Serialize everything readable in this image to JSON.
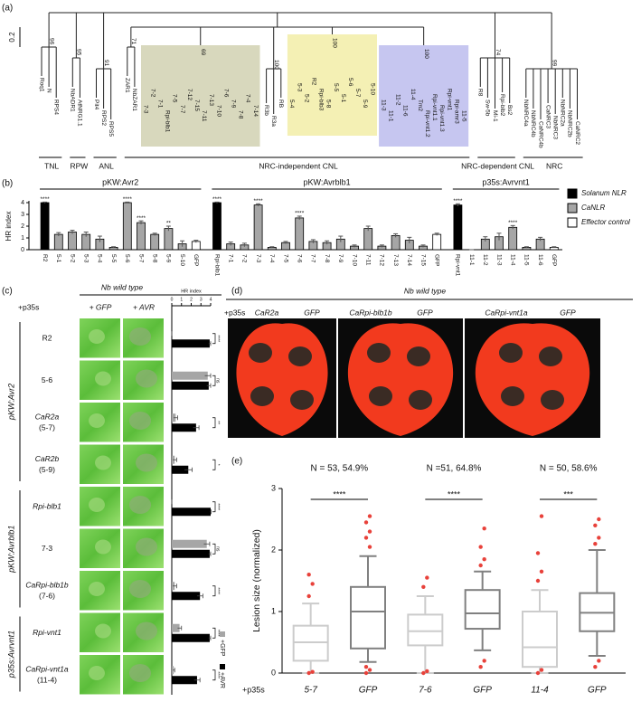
{
  "panel_labels": [
    "(a)",
    "(b)",
    "(c)",
    "(d)",
    "(e)"
  ],
  "tree": {
    "scale_label": "0.2",
    "clades": [
      {
        "label": "TNL",
        "groups": [
          {
            "support": 96,
            "leaves": [
              "Roq1",
              "N",
              "RPS4"
            ]
          }
        ]
      },
      {
        "label": "RPW",
        "groups": [
          {
            "support": 95,
            "leaves": [
              "NbADR1",
              "AtNRG1.1"
            ]
          }
        ]
      },
      {
        "label": "ANL",
        "groups": [
          {
            "support": 91,
            "leaves": [
              "Pit4",
              "RPS2",
              "RPS5"
            ]
          }
        ]
      },
      {
        "label": "NRC-independent CNL",
        "groups": [
          {
            "support": 71,
            "leaves": [
              "ZAR1",
              "NbZAR1"
            ]
          },
          {
            "support": 69,
            "shade": "#d8d8bd",
            "leaves": [
              "7-3",
              "7-2",
              "7-1",
              "Rpi-blb1",
              "7-5",
              "7-7",
              "7-12",
              "7-15",
              "7-11",
              "7-13",
              "7-10",
              "7-6",
              "7-9",
              "7-8",
              "7-4",
              "7-14"
            ]
          },
          {
            "support": 100,
            "leaves": [
              "R3b",
              "R3a",
              "RB"
            ]
          },
          {
            "support": 100,
            "shade": "#f4f0b4",
            "leaves": [
              "5-4",
              "5-3",
              "5-2",
              "R2",
              "Rpi-blb3",
              "5-8",
              "5-5",
              "5-1",
              "5-6",
              "5-7",
              "5-9",
              "5-10"
            ]
          },
          {
            "support": 100,
            "shade": "#c6c6f0",
            "leaves": [
              "11-3",
              "11-1",
              "11-2",
              "11-6",
              "11-4",
              "Tm2",
              "Rpi-vnt1.2",
              "Rpi-vnt1.1",
              "Rpi-vnt1.3",
              "Rpi-vnt1",
              "Rpi-amr3",
              "11-5"
            ]
          }
        ]
      },
      {
        "label": "NRC-dependent CNL",
        "groups": [
          {
            "support": 74,
            "leaves": [
              "R8",
              "Sw-5b",
              "Mi-1",
              "Rpi-blb2",
              "Bs2"
            ]
          }
        ]
      },
      {
        "label": "NRC",
        "groups": [
          {
            "support": 99,
            "leaves": [
              "NbNRC4a",
              "NbNRC4b",
              "CaNRC4b",
              "CaNRC3",
              "NbNRC3",
              "NbNRC2a",
              "NbNRC2b",
              "CaNRC2"
            ]
          }
        ]
      }
    ]
  },
  "chart_data": [
    {
      "type": "bar",
      "y_label": "HR index",
      "ylim": [
        0,
        4
      ],
      "yticks": [
        0,
        1,
        2,
        3,
        4
      ],
      "legend": [
        {
          "name": "Solanum NLR",
          "color": "#000000"
        },
        {
          "name": "CaNLR",
          "color": "#a6a6a6"
        },
        {
          "name": "Effector control",
          "color": "#ffffff"
        }
      ],
      "groups": [
        {
          "label": "pKW:Avr2",
          "categories": [
            "R2",
            "5-1",
            "5-2",
            "5-3",
            "5-4",
            "5-5",
            "5-6",
            "5-7",
            "5-8",
            "5-9",
            "5-10",
            "GFP"
          ],
          "values": [
            4.0,
            1.3,
            1.5,
            1.3,
            0.9,
            0.2,
            4.0,
            2.3,
            1.3,
            1.8,
            0.5,
            0.7
          ],
          "errors": [
            0.05,
            0.15,
            0.15,
            0.2,
            0.25,
            0.05,
            0.05,
            0.15,
            0.1,
            0.2,
            0.25,
            0.1
          ],
          "colors": [
            "#000000",
            "#a6a6a6",
            "#a6a6a6",
            "#a6a6a6",
            "#a6a6a6",
            "#a6a6a6",
            "#a6a6a6",
            "#a6a6a6",
            "#a6a6a6",
            "#a6a6a6",
            "#a6a6a6",
            "#ffffff"
          ],
          "significance": [
            "****",
            null,
            null,
            null,
            null,
            null,
            "****",
            "****",
            null,
            "**",
            null,
            null
          ]
        },
        {
          "label": "pKW:Avrblb1",
          "categories": [
            "Rpi-blb1",
            "7-1",
            "7-2",
            "7-3",
            "7-4",
            "7-5",
            "7-6",
            "7-7",
            "7-8",
            "7-9",
            "7-10",
            "7-11",
            "7-12",
            "7-13",
            "7-14",
            "7-15",
            "GFP"
          ],
          "values": [
            4.0,
            0.5,
            0.4,
            3.8,
            0.2,
            0.6,
            2.7,
            0.7,
            0.6,
            0.9,
            0.3,
            1.8,
            0.3,
            1.2,
            0.8,
            0.3,
            1.3
          ],
          "errors": [
            0.05,
            0.15,
            0.15,
            0.1,
            0.05,
            0.1,
            0.15,
            0.15,
            0.15,
            0.25,
            0.1,
            0.2,
            0.1,
            0.15,
            0.25,
            0.1,
            0.1
          ],
          "colors": [
            "#000000",
            "#a6a6a6",
            "#a6a6a6",
            "#a6a6a6",
            "#a6a6a6",
            "#a6a6a6",
            "#a6a6a6",
            "#a6a6a6",
            "#a6a6a6",
            "#a6a6a6",
            "#a6a6a6",
            "#a6a6a6",
            "#a6a6a6",
            "#a6a6a6",
            "#a6a6a6",
            "#a6a6a6",
            "#ffffff"
          ],
          "significance": [
            "****",
            null,
            null,
            "****",
            null,
            null,
            "****",
            null,
            null,
            null,
            null,
            null,
            null,
            null,
            null,
            null,
            null
          ]
        },
        {
          "label": "p35s:Avrvnt1",
          "categories": [
            "Rpi-vnt1",
            "11-1",
            "11-2",
            "11-3",
            "11-4",
            "11-5",
            "11-6",
            "GFP"
          ],
          "values": [
            3.8,
            0.0,
            0.9,
            1.1,
            1.9,
            0.2,
            0.9,
            0.2
          ],
          "errors": [
            0.1,
            0.0,
            0.2,
            0.3,
            0.15,
            0.05,
            0.15,
            0.05
          ],
          "colors": [
            "#000000",
            "#a6a6a6",
            "#a6a6a6",
            "#a6a6a6",
            "#a6a6a6",
            "#a6a6a6",
            "#a6a6a6",
            "#ffffff"
          ],
          "significance": [
            "****",
            null,
            null,
            null,
            "****",
            null,
            null,
            null
          ]
        }
      ]
    },
    {
      "type": "barh",
      "x_label": "HR index",
      "xlim": [
        0,
        4
      ],
      "xticks": [
        0,
        1,
        2,
        3,
        4
      ],
      "header": "Nb wild type",
      "prefix": "+p35s",
      "columns": [
        "+ GFP",
        "+ AVR"
      ],
      "series": [
        {
          "name": "+GFP",
          "color": "#a6a6a6"
        },
        {
          "name": "+AVR",
          "color": "#000000"
        }
      ],
      "effectors": [
        {
          "label": "pKW:Avr2",
          "rows": [
            {
              "label": "R2",
              "values": [
                0.0,
                3.9
              ],
              "errors": [
                0.0,
                0.1
              ],
              "significance": "****"
            },
            {
              "label": "5-6",
              "values": [
                3.7,
                3.8
              ],
              "errors": [
                0.3,
                0.2
              ],
              "significance": "ns"
            },
            {
              "label": "CaR2a",
              "sublabel": "(5-7)",
              "values": [
                0.4,
                2.5
              ],
              "errors": [
                0.2,
                0.3
              ],
              "significance": "**"
            },
            {
              "label": "CaR2b",
              "sublabel": "(5-9)",
              "values": [
                0.3,
                1.7
              ],
              "errors": [
                0.2,
                0.4
              ],
              "significance": "*"
            }
          ]
        },
        {
          "label": "pKW:Avrblb1",
          "rows": [
            {
              "label": "Rpi-blb1",
              "values": [
                0.0,
                4.0
              ],
              "errors": [
                0.0,
                0.05
              ],
              "significance": "****"
            },
            {
              "label": "7-3",
              "values": [
                3.6,
                3.9
              ],
              "errors": [
                0.3,
                0.1
              ],
              "significance": "ns"
            },
            {
              "label": "CaRpi-blb1b",
              "sublabel": "(7-6)",
              "values": [
                0.3,
                2.9
              ],
              "errors": [
                0.2,
                0.3
              ],
              "significance": "****"
            }
          ]
        },
        {
          "label": "p35s:Avrvnt1",
          "rows": [
            {
              "label": "Rpi-vnt1",
              "values": [
                0.8,
                3.9
              ],
              "errors": [
                0.2,
                0.1
              ],
              "significance": "****"
            },
            {
              "label": "CaRpi-vnt1a",
              "sublabel": "(11-4)",
              "values": [
                0.2,
                2.6
              ],
              "errors": [
                0.1,
                0.3
              ],
              "significance": "****"
            }
          ]
        }
      ]
    },
    {
      "type": "box",
      "y_label": "Lesion size (normalized)",
      "prefix": "+p35s",
      "ylim": [
        0,
        3
      ],
      "yticks": [
        0,
        1,
        2,
        3
      ],
      "categories": [
        "5-7",
        "GFP",
        "7-6",
        "GFP",
        "11-4",
        "GFP"
      ],
      "colors": [
        "#cccccc",
        "#808080",
        "#cccccc",
        "#808080",
        "#cccccc",
        "#808080"
      ],
      "flier_color": "#e8413a",
      "boxes": [
        {
          "whislo": 0.0,
          "q1": 0.2,
          "med": 0.5,
          "q3": 0.77,
          "whishi": 1.13,
          "fliers": [
            0.0,
            0.02,
            1.25,
            1.45,
            1.6
          ]
        },
        {
          "whislo": 0.18,
          "q1": 0.4,
          "med": 1.0,
          "q3": 1.4,
          "whishi": 1.9,
          "fliers": [
            0.0,
            0.05,
            0.1,
            2.05,
            2.2,
            2.3,
            2.45,
            2.55
          ]
        },
        {
          "whislo": 0.0,
          "q1": 0.45,
          "med": 0.68,
          "q3": 0.95,
          "whishi": 1.25,
          "fliers": [
            0.0,
            0.03,
            1.4,
            1.55
          ]
        },
        {
          "whislo": 0.37,
          "q1": 0.72,
          "med": 0.97,
          "q3": 1.35,
          "whishi": 1.65,
          "fliers": [
            0.1,
            0.2,
            1.75,
            1.85,
            2.05,
            2.35
          ]
        },
        {
          "whislo": 0.0,
          "q1": 0.1,
          "med": 0.42,
          "q3": 1.0,
          "whishi": 1.35,
          "fliers": [
            0.0,
            0.05,
            1.5,
            1.65,
            1.95,
            2.55
          ]
        },
        {
          "whislo": 0.28,
          "q1": 0.68,
          "med": 0.98,
          "q3": 1.3,
          "whishi": 2.0,
          "fliers": [
            0.1,
            0.2,
            2.1,
            2.2,
            2.4,
            2.5
          ]
        }
      ],
      "annotations": [
        "N = 53, 54.9%",
        "N =51, 64.8%",
        "N = 50, 58.6%"
      ],
      "significance": [
        "****",
        "****",
        "***"
      ]
    }
  ],
  "panel_d": {
    "header": "Nb wild type",
    "prefix": "+p35s",
    "labels": [
      "CaR2a",
      "GFP",
      "CaRpi-blb1b",
      "GFP",
      "CaRpi-vnt1a",
      "GFP"
    ]
  }
}
